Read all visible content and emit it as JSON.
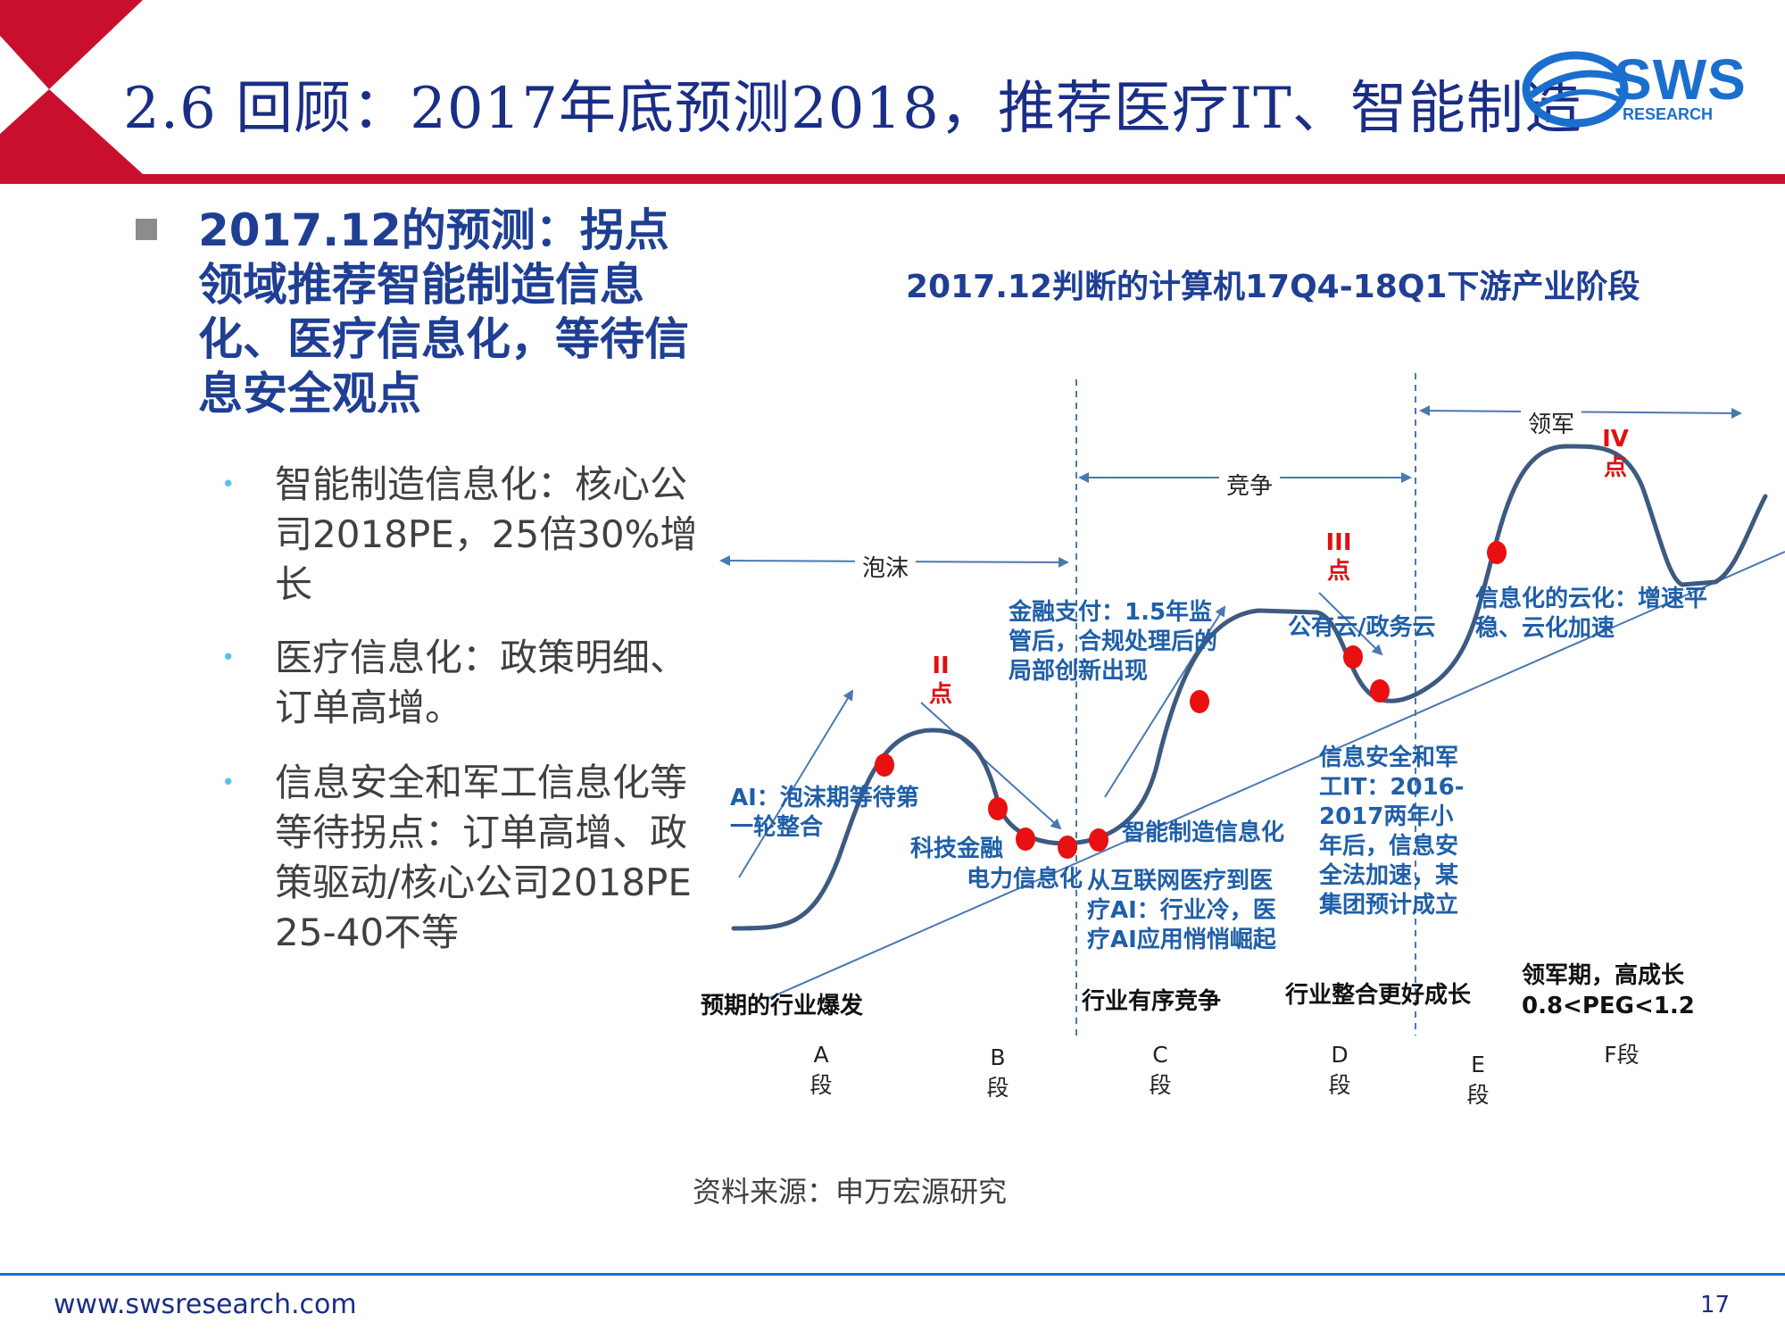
{
  "header": {
    "title": "2.6 回顾：2017年底预测2018，推荐医疗IT、智能制造",
    "logo_text": "SWS",
    "logo_subtext": "RESEARCH"
  },
  "left_panel": {
    "main_point": "2017.12的预测：拐点领域推荐智能制造信息化、医疗信息化，等待信息安全观点",
    "sub_points": [
      "智能制造信息化：核心公司2018PE，25倍30%增长",
      "医疗信息化：政策明细、订单高增。",
      "信息安全和军工信息化等等待拐点：订单高增、政策驱动/核心公司2018PE 25-40不等"
    ]
  },
  "diagram": {
    "title": "2017.12判断的计算机17Q4-18Q1下游产业阶段",
    "phase_arrows": [
      "泡沫",
      "竞争",
      "领军"
    ],
    "points": [
      "II点",
      "III点",
      "IV点"
    ],
    "annotations": {
      "ai": "AI：泡沫期等待第一轮整合",
      "fintech": "科技金融",
      "power": "电力信息化",
      "finance_pay": "金融支付：1.5年监管后，合规处理后的局部创新出现",
      "smart_mfg": "智能制造信息化",
      "medical": "从互联网医疗到医疗AI：行业冷，医疗AI应用悄悄崛起",
      "cloud": "公有云/政务云",
      "security": "信息安全和军工IT：2016-2017两年小年后，信息安全法加速，某集团预计成立",
      "cloudify": "信息化的云化：增速平稳、云化加速"
    },
    "stages": [
      "预期的行业爆发",
      "行业有序竞争",
      "行业整合更好成长",
      "领军期，高成长 0.8<PEG<1.2"
    ],
    "segments": [
      "A段",
      "B段",
      "C段",
      "D段",
      "E段",
      "F段"
    ]
  },
  "source": "资料来源：申万宏源研究",
  "footer": {
    "url": "www.swsresearch.com",
    "page": "17"
  },
  "colors": {
    "header_red": "#c8102e",
    "title_blue": "#1a2e86",
    "curve": "#3d5a80",
    "dot_red": "#e81010",
    "annotation_blue": "#1f5fa8"
  }
}
